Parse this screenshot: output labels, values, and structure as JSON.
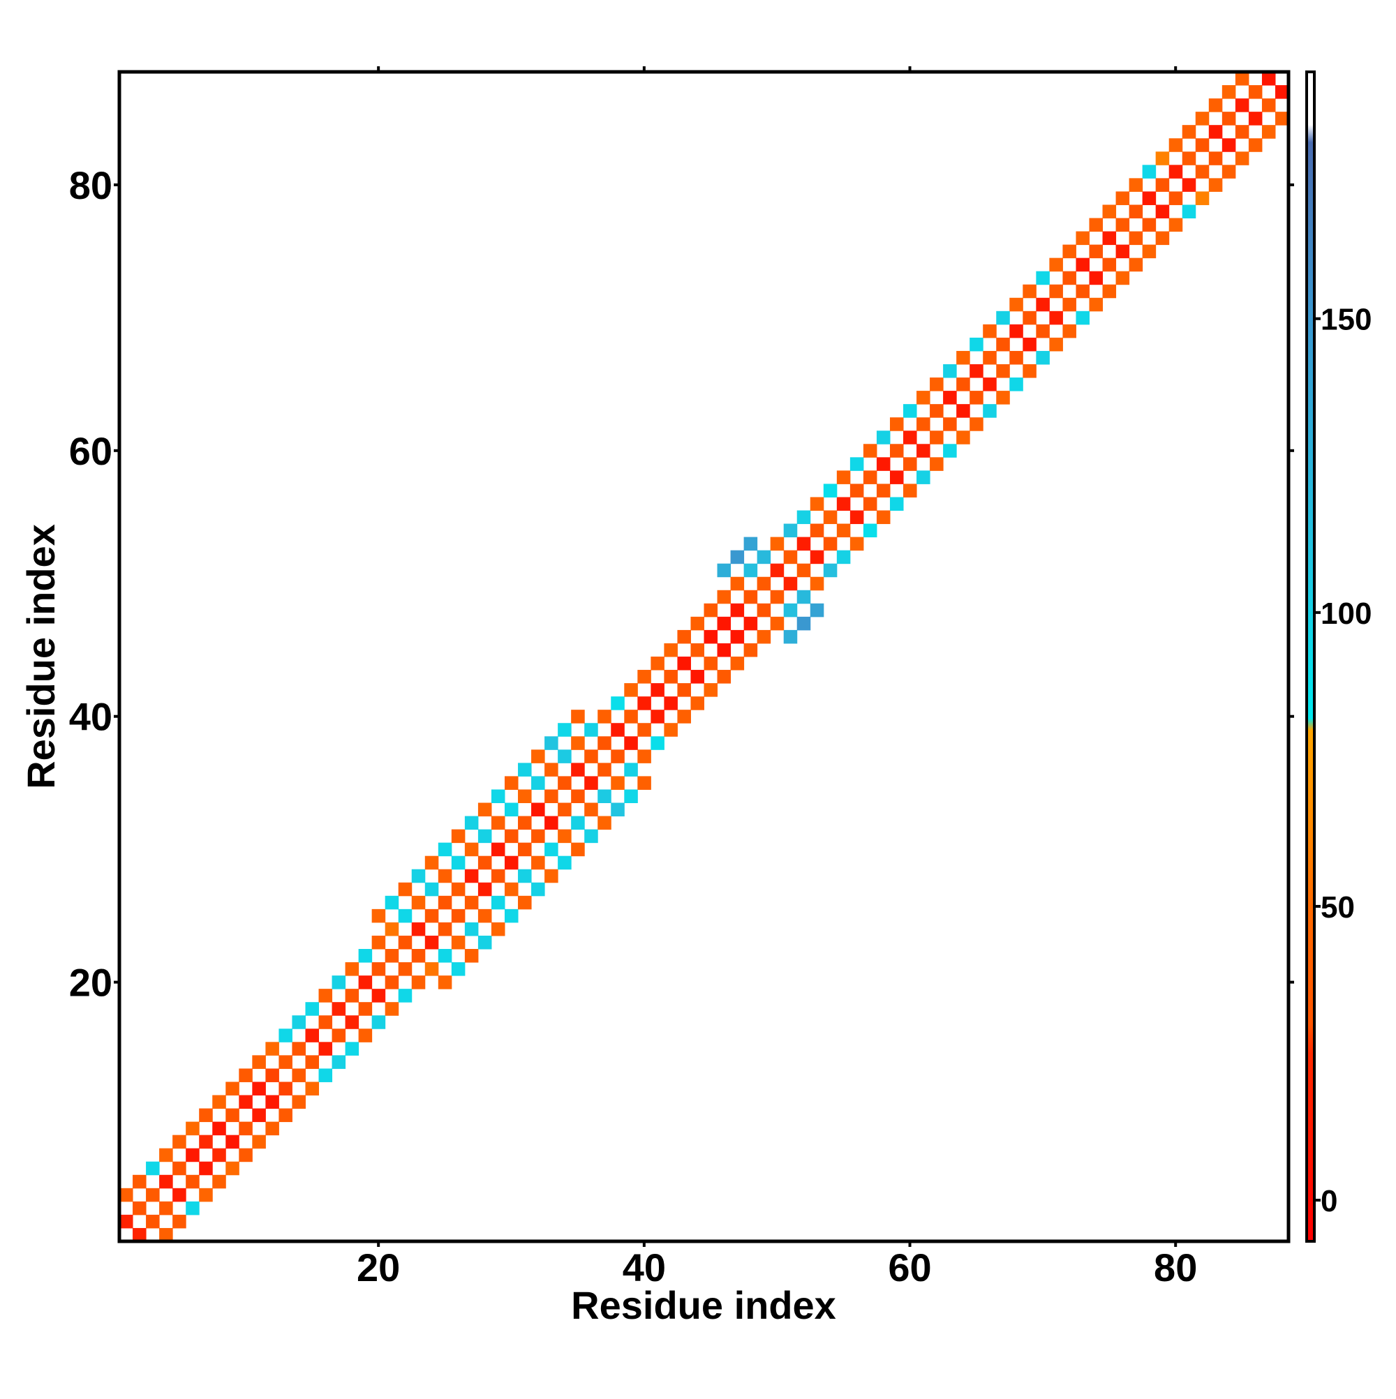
{
  "chart_data": {
    "type": "heatmap",
    "xlabel": "Residue index",
    "ylabel": "Residue index",
    "xlim": [
      0.5,
      88.5
    ],
    "ylim": [
      0.5,
      88.5
    ],
    "xticks": [
      20,
      40,
      60,
      80
    ],
    "yticks": [
      20,
      40,
      60,
      80
    ],
    "symmetric": true,
    "clim": [
      -7,
      192
    ],
    "cticks": [
      0,
      50,
      100,
      150
    ],
    "colorscale": [
      [
        -7,
        "#ff0000"
      ],
      [
        25,
        "#ff2a00"
      ],
      [
        30,
        "#ff5500"
      ],
      [
        50,
        "#ff6a00"
      ],
      [
        65,
        "#ff8c00"
      ],
      [
        80,
        "#ffa500"
      ],
      [
        82,
        "#00e8ee"
      ],
      [
        110,
        "#22c4e0"
      ],
      [
        150,
        "#3a98d0"
      ],
      [
        180,
        "#4a6cb0"
      ],
      [
        183,
        "#ffffff"
      ],
      [
        192,
        "#ffffff"
      ]
    ],
    "cells": [
      [
        1,
        2,
        20
      ],
      [
        2,
        3,
        30
      ],
      [
        3,
        4,
        35
      ],
      [
        4,
        5,
        15
      ],
      [
        5,
        6,
        30
      ],
      [
        6,
        7,
        12
      ],
      [
        7,
        8,
        25
      ],
      [
        8,
        9,
        10
      ],
      [
        9,
        10,
        30
      ],
      [
        10,
        11,
        15
      ],
      [
        11,
        12,
        12
      ],
      [
        12,
        13,
        28
      ],
      [
        13,
        14,
        35
      ],
      [
        14,
        15,
        30
      ],
      [
        15,
        16,
        15
      ],
      [
        16,
        17,
        30
      ],
      [
        17,
        18,
        20
      ],
      [
        18,
        19,
        32
      ],
      [
        19,
        20,
        15
      ],
      [
        20,
        21,
        30
      ],
      [
        21,
        22,
        35
      ],
      [
        22,
        23,
        30
      ],
      [
        23,
        24,
        15
      ],
      [
        24,
        25,
        32
      ],
      [
        25,
        26,
        30
      ],
      [
        26,
        27,
        35
      ],
      [
        27,
        28,
        15
      ],
      [
        28,
        29,
        30
      ],
      [
        29,
        30,
        12
      ],
      [
        30,
        31,
        30
      ],
      [
        31,
        32,
        32
      ],
      [
        32,
        33,
        10
      ],
      [
        33,
        34,
        35
      ],
      [
        34,
        35,
        30
      ],
      [
        35,
        36,
        15
      ],
      [
        36,
        37,
        32
      ],
      [
        37,
        38,
        30
      ],
      [
        38,
        39,
        12
      ],
      [
        39,
        40,
        35
      ],
      [
        40,
        41,
        15
      ],
      [
        41,
        42,
        12
      ],
      [
        42,
        43,
        30
      ],
      [
        43,
        44,
        10
      ],
      [
        44,
        45,
        35
      ],
      [
        45,
        46,
        8
      ],
      [
        46,
        47,
        10
      ],
      [
        47,
        48,
        12
      ],
      [
        48,
        49,
        30
      ],
      [
        49,
        50,
        35
      ],
      [
        50,
        51,
        20
      ],
      [
        51,
        52,
        35
      ],
      [
        52,
        53,
        15
      ],
      [
        53,
        54,
        30
      ],
      [
        54,
        55,
        40
      ],
      [
        55,
        56,
        15
      ],
      [
        56,
        57,
        30
      ],
      [
        57,
        58,
        32
      ],
      [
        58,
        59,
        12
      ],
      [
        59,
        60,
        30
      ],
      [
        60,
        61,
        15
      ],
      [
        61,
        62,
        35
      ],
      [
        62,
        63,
        30
      ],
      [
        63,
        64,
        12
      ],
      [
        64,
        65,
        30
      ],
      [
        65,
        66,
        15
      ],
      [
        66,
        67,
        35
      ],
      [
        67,
        68,
        30
      ],
      [
        68,
        69,
        12
      ],
      [
        69,
        70,
        30
      ],
      [
        70,
        71,
        15
      ],
      [
        71,
        72,
        35
      ],
      [
        72,
        73,
        30
      ],
      [
        73,
        74,
        12
      ],
      [
        74,
        75,
        30
      ],
      [
        75,
        76,
        15
      ],
      [
        76,
        77,
        35
      ],
      [
        77,
        78,
        30
      ],
      [
        78,
        79,
        12
      ],
      [
        79,
        80,
        30
      ],
      [
        80,
        81,
        15
      ],
      [
        81,
        82,
        35
      ],
      [
        82,
        83,
        30
      ],
      [
        83,
        84,
        12
      ],
      [
        84,
        85,
        30
      ],
      [
        85,
        86,
        15
      ],
      [
        86,
        87,
        35
      ],
      [
        87,
        88,
        10
      ],
      [
        1,
        4,
        40
      ],
      [
        2,
        5,
        35
      ],
      [
        3,
        6,
        95
      ],
      [
        4,
        7,
        45
      ],
      [
        5,
        8,
        40
      ],
      [
        6,
        9,
        50
      ],
      [
        7,
        10,
        35
      ],
      [
        8,
        11,
        45
      ],
      [
        9,
        12,
        40
      ],
      [
        10,
        13,
        35
      ],
      [
        11,
        14,
        40
      ],
      [
        12,
        15,
        50
      ],
      [
        13,
        16,
        95
      ],
      [
        14,
        17,
        100
      ],
      [
        15,
        18,
        95
      ],
      [
        16,
        19,
        40
      ],
      [
        17,
        20,
        100
      ],
      [
        18,
        21,
        45
      ],
      [
        19,
        22,
        95
      ],
      [
        20,
        23,
        40
      ],
      [
        21,
        24,
        55
      ],
      [
        22,
        25,
        95
      ],
      [
        23,
        26,
        45
      ],
      [
        24,
        27,
        100
      ],
      [
        25,
        28,
        40
      ],
      [
        26,
        29,
        95
      ],
      [
        27,
        30,
        45
      ],
      [
        28,
        31,
        100
      ],
      [
        29,
        32,
        40
      ],
      [
        30,
        33,
        95
      ],
      [
        31,
        34,
        45
      ],
      [
        32,
        35,
        100
      ],
      [
        33,
        36,
        40
      ],
      [
        34,
        37,
        105
      ],
      [
        35,
        38,
        45
      ],
      [
        36,
        39,
        100
      ],
      [
        37,
        40,
        40
      ],
      [
        38,
        41,
        90
      ],
      [
        39,
        42,
        45
      ],
      [
        40,
        43,
        40
      ],
      [
        41,
        44,
        40
      ],
      [
        42,
        45,
        45
      ],
      [
        43,
        46,
        35
      ],
      [
        44,
        47,
        40
      ],
      [
        45,
        48,
        35
      ],
      [
        46,
        49,
        40
      ],
      [
        47,
        50,
        40
      ],
      [
        48,
        51,
        115
      ],
      [
        49,
        52,
        120
      ],
      [
        50,
        53,
        45
      ],
      [
        51,
        54,
        115
      ],
      [
        52,
        55,
        100
      ],
      [
        53,
        56,
        45
      ],
      [
        54,
        57,
        90
      ],
      [
        55,
        58,
        40
      ],
      [
        56,
        59,
        95
      ],
      [
        57,
        60,
        40
      ],
      [
        58,
        61,
        100
      ],
      [
        59,
        62,
        40
      ],
      [
        60,
        63,
        95
      ],
      [
        61,
        64,
        45
      ],
      [
        62,
        65,
        40
      ],
      [
        63,
        66,
        100
      ],
      [
        64,
        67,
        45
      ],
      [
        65,
        68,
        95
      ],
      [
        66,
        69,
        40
      ],
      [
        67,
        70,
        100
      ],
      [
        68,
        71,
        45
      ],
      [
        69,
        72,
        40
      ],
      [
        70,
        73,
        95
      ],
      [
        71,
        74,
        45
      ],
      [
        72,
        75,
        40
      ],
      [
        73,
        76,
        45
      ],
      [
        74,
        77,
        40
      ],
      [
        75,
        78,
        45
      ],
      [
        76,
        79,
        40
      ],
      [
        77,
        80,
        45
      ],
      [
        78,
        81,
        95
      ],
      [
        79,
        82,
        60
      ],
      [
        80,
        83,
        45
      ],
      [
        81,
        84,
        40
      ],
      [
        82,
        85,
        45
      ],
      [
        83,
        86,
        40
      ],
      [
        84,
        87,
        45
      ],
      [
        85,
        88,
        40
      ],
      [
        20,
        25,
        45
      ],
      [
        21,
        26,
        95
      ],
      [
        22,
        27,
        40
      ],
      [
        23,
        28,
        100
      ],
      [
        24,
        29,
        45
      ],
      [
        25,
        30,
        95
      ],
      [
        26,
        31,
        40
      ],
      [
        27,
        32,
        100
      ],
      [
        28,
        33,
        45
      ],
      [
        29,
        34,
        95
      ],
      [
        30,
        35,
        40
      ],
      [
        31,
        36,
        100
      ],
      [
        32,
        37,
        45
      ],
      [
        33,
        38,
        110
      ],
      [
        34,
        39,
        95
      ],
      [
        35,
        40,
        40
      ],
      [
        46,
        51,
        130
      ],
      [
        47,
        52,
        150
      ],
      [
        48,
        53,
        140
      ]
    ]
  }
}
